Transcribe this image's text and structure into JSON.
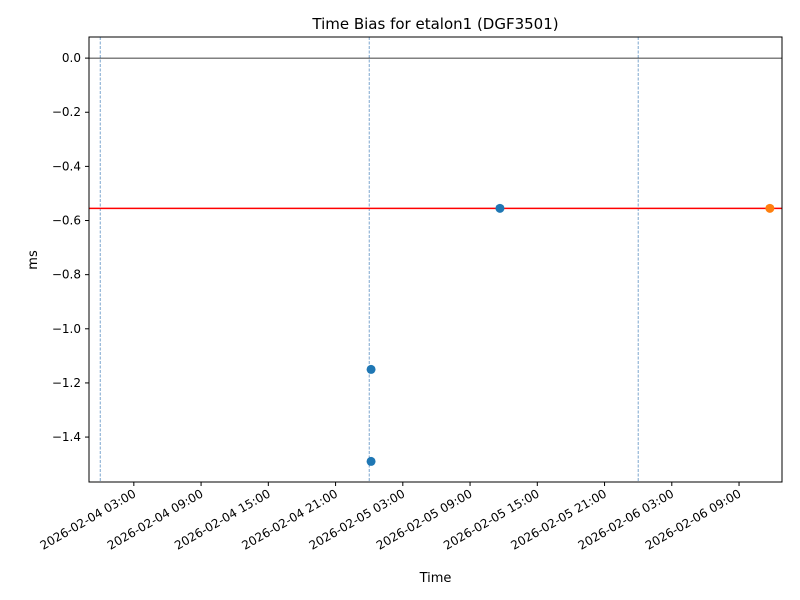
{
  "chart_data": {
    "type": "scatter",
    "title": "Time Bias for etalon1 (DGF3501)",
    "xlabel": "Time",
    "ylabel": "ms",
    "xlim": [
      "2026-02-03 23:00",
      "2026-02-06 12:50"
    ],
    "ylim": [
      -1.566,
      0.078
    ],
    "grid": false,
    "x_ticks": [
      "2026-02-04 03:00",
      "2026-02-04 09:00",
      "2026-02-04 15:00",
      "2026-02-04 21:00",
      "2026-02-05 03:00",
      "2026-02-05 09:00",
      "2026-02-05 15:00",
      "2026-02-05 21:00",
      "2026-02-06 03:00",
      "2026-02-06 09:00"
    ],
    "y_ticks": [
      0.0,
      -0.2,
      -0.4,
      -0.6,
      -0.8,
      -1.0,
      -1.2,
      -1.4
    ],
    "y_tick_labels": [
      "0.0",
      "−0.2",
      "−0.4",
      "−0.6",
      "−0.8",
      "−1.0",
      "−1.2",
      "−1.4"
    ],
    "series": [
      {
        "color": "#1f77b4",
        "points": [
          {
            "x": "2026-02-05 00:10",
            "y": -1.15
          },
          {
            "x": "2026-02-05 00:10",
            "y": -1.49
          },
          {
            "x": "2026-02-05 11:40",
            "y": -0.555
          }
        ]
      },
      {
        "color": "#ff7f0e",
        "points": [
          {
            "x": "2026-02-06 11:45",
            "y": -0.555
          }
        ]
      }
    ],
    "horizontal_lines": [
      {
        "y": 0.0,
        "color": "#000000",
        "style": "solid"
      },
      {
        "y": -0.555,
        "color": "#ff0000",
        "style": "solid"
      }
    ],
    "vertical_lines": [
      {
        "x": "2026-02-04 00:00",
        "color": "#5b8fc2",
        "style": "dashed"
      },
      {
        "x": "2026-02-05 00:00",
        "color": "#5b8fc2",
        "style": "dashed"
      },
      {
        "x": "2026-02-06 00:00",
        "color": "#5b8fc2",
        "style": "dashed"
      }
    ]
  }
}
